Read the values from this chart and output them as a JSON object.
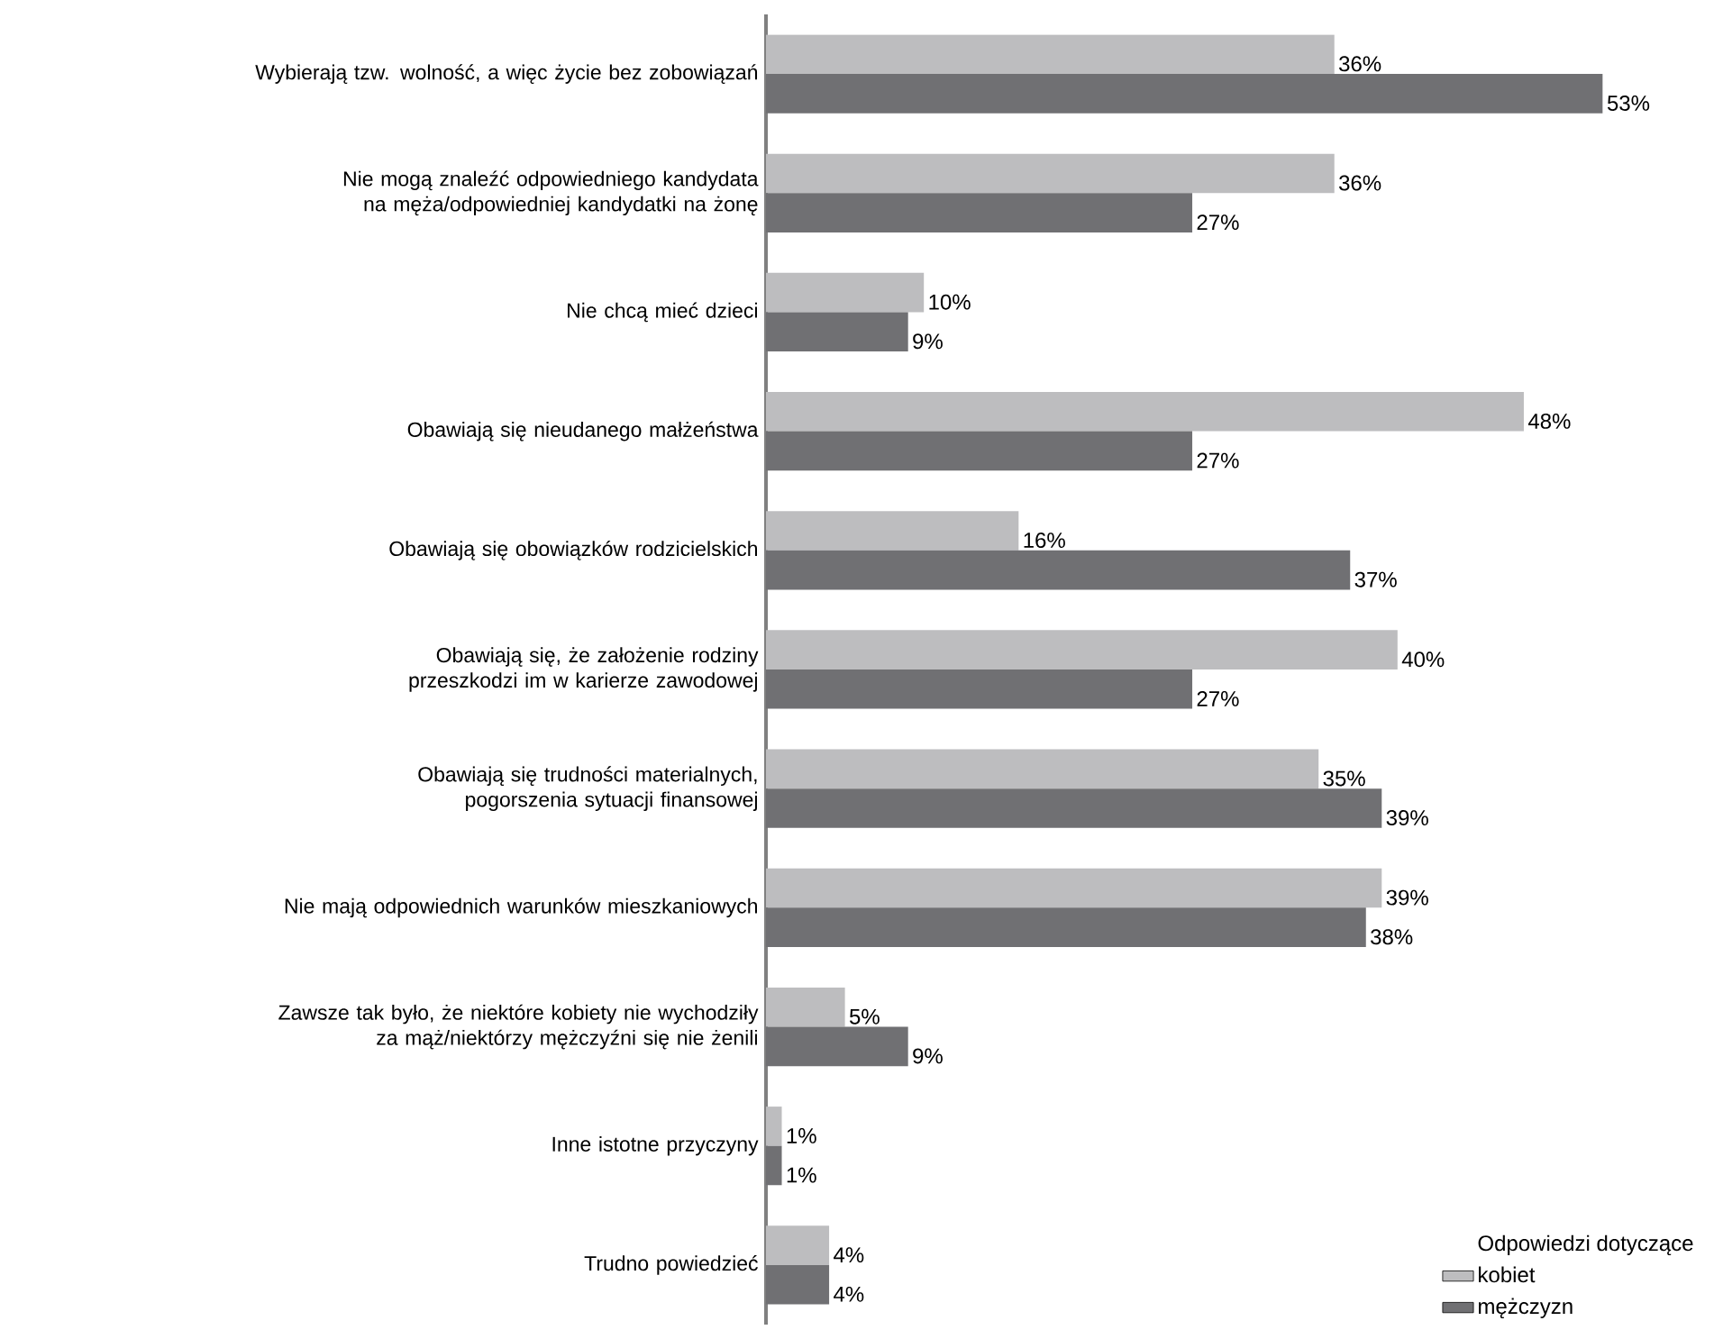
{
  "chart_data": {
    "type": "bar",
    "orientation": "horizontal",
    "categories": [
      "Wybierają tzw. wolność, a więc życie bez zobowiązań",
      "Nie mogą znaleźć odpowiedniego kandydata na męża/odpowiedniej kandydatki na żonę",
      "Nie chcą mieć dzieci",
      "Obawiają się nieudanego małżeństwa",
      "Obawiają się obowiązków rodzicielskich",
      "Obawiają się, że założenie rodziny przeszkodzi im w karierze zawodowej",
      "Obawiają się trudności materialnych, pogorszenia sytuacji finansowej",
      "Nie mają odpowiednich warunków mieszkaniowych",
      "Zawsze tak było, że niektóre kobiety nie wychodziły za mąż/niektórzy mężczyźni się nie żenili",
      "Inne istotne przyczyny",
      "Trudno powiedzieć"
    ],
    "series": [
      {
        "name": "kobiet",
        "color": "#bdbdbf",
        "values": [
          36,
          36,
          10,
          48,
          16,
          40,
          35,
          39,
          5,
          1,
          4
        ],
        "value_labels": [
          "36%",
          "36%",
          "10%",
          "48%",
          "16%",
          "40%",
          "35%",
          "39%",
          "5%",
          "1%",
          "4%"
        ]
      },
      {
        "name": "mężczyzn",
        "color": "#707073",
        "values": [
          53,
          27,
          9,
          27,
          37,
          27,
          39,
          38,
          9,
          1,
          4
        ],
        "value_labels": [
          "53%",
          "27%",
          "9%",
          "27%",
          "37%",
          "27%",
          "39%",
          "38%",
          "9%",
          "1%",
          "4%"
        ]
      }
    ],
    "legend_title": "Odpowiedzi dotyczące",
    "legend": "bottom right"
  }
}
